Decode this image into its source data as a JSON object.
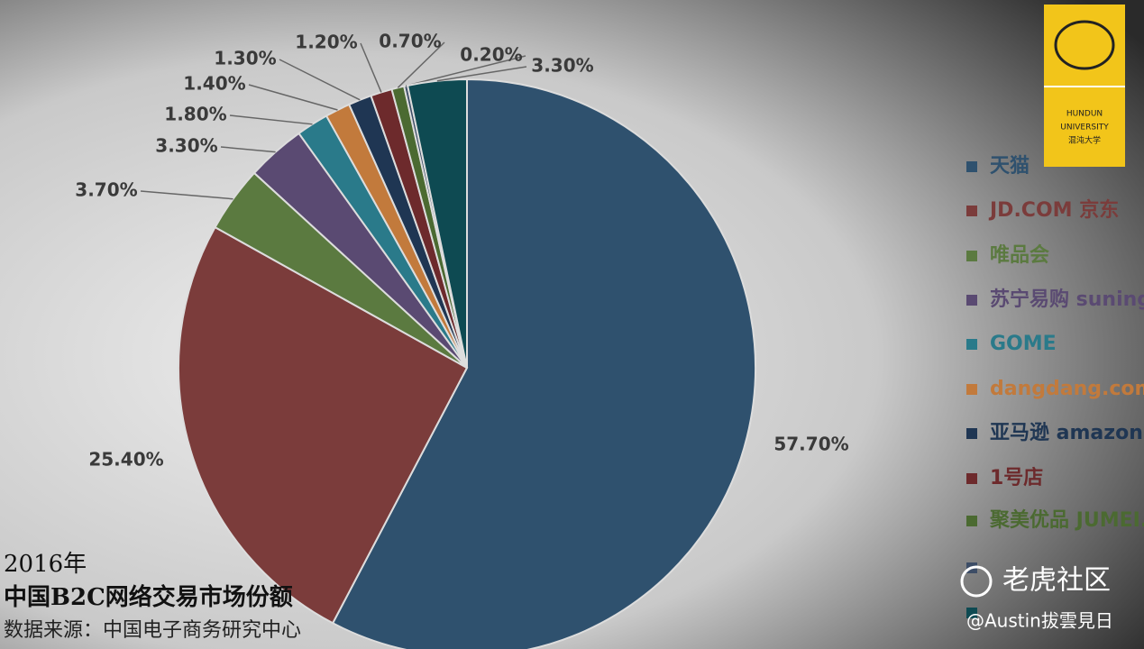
{
  "chart_data": {
    "type": "pie",
    "title": "2016年",
    "subtitle": "中国B2C网络交易市场份额",
    "source": "数据来源：中国电子商务研究中心",
    "series": [
      {
        "names": [
          "天猫",
          "JD.COM 京东",
          "唯品会",
          "苏宁易购 suning.com",
          "GOME",
          "dangdang.com",
          "亚马逊 amazon.cn",
          "1号店",
          "聚美优品 JUMEI.COM",
          null,
          null
        ],
        "colors": [
          "#2f516e",
          "#7b3c3b",
          "#5b7a40",
          "#5a4a72",
          "#2a7a8a",
          "#c27a3c",
          "#1f3653",
          "#6d2a2c",
          "#4b6a31",
          "#3d4d66",
          "#0e4a52"
        ],
        "values": [
          57.7,
          25.4,
          3.7,
          3.3,
          1.8,
          1.4,
          1.3,
          1.2,
          0.7,
          0.2,
          3.3
        ],
        "value_labels": [
          "57.70%",
          "25.40%",
          "3.70%",
          "3.30%",
          "1.80%",
          "1.40%",
          "1.30%",
          "1.20%",
          "0.70%",
          "0.20%",
          "3.30%"
        ]
      }
    ],
    "logo": {
      "line1": "HUNDUN",
      "line2": "UNIVERSITY",
      "line3": "混沌大学"
    },
    "watermark": {
      "site": "老虎社区",
      "author": "@Austin拔雲見日"
    }
  }
}
